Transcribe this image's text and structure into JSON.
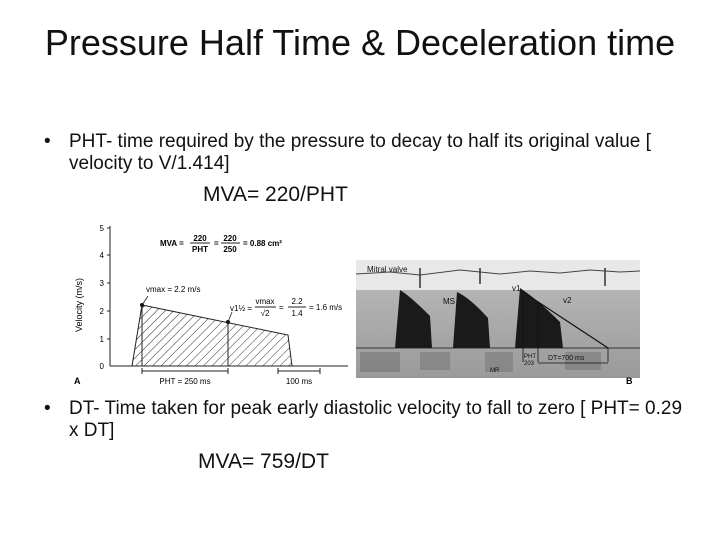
{
  "title": "Pressure Half Time & Deceleration time",
  "bullets": [
    {
      "symbol": "•",
      "text": "PHT- time required by the pressure to decay to half its original value [ velocity to V/1.414]"
    },
    {
      "symbol": "•",
      "text": "DT- Time taken for peak early diastolic velocity to fall to zero  [ PHT= 0.29 x DT]"
    }
  ],
  "formulas": {
    "mva_pht": "MVA= 220/PHT",
    "mva_dt": "MVA= 759/DT"
  },
  "figure_a": {
    "y_axis_label": "Velocity (m/s)",
    "y_ticks": [
      "0",
      "1",
      "2",
      "3",
      "4",
      "5"
    ],
    "mva_lhs": "MVA =",
    "frac1_num": "220",
    "frac1_den": "PHT",
    "eq": "=",
    "frac2_num": "220",
    "frac2_den": "250",
    "mva_result": "= 0.88 cm²",
    "vmax_label": "vmax = 2.2 m/s",
    "vhalf_label": "v1½ =",
    "vhalf_frac_num": "vmax",
    "vhalf_frac_den": "√2",
    "vhalf_eq": "=",
    "vhalf_frac2_num": "2.2",
    "vhalf_frac2_den": "1.4",
    "vhalf_result": "= 1.6 m/s",
    "pht_label": "PHT = 250 ms",
    "scale_label": "100 ms",
    "panel_letter": "A"
  },
  "figure_b": {
    "mitral_label": "Mitral valve",
    "ms_label": "MS",
    "v1_label": "v1",
    "v2_label": "v2",
    "pht_label": "PHT",
    "pht_value": "203",
    "dt_label": "DT=700 ms",
    "mr_label": "MR",
    "panel_letter": "B"
  }
}
